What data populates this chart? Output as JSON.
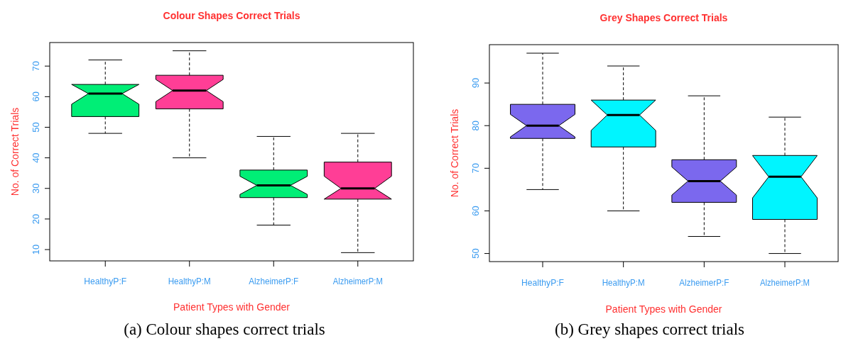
{
  "chart_data": [
    {
      "type": "box",
      "title": "Colour Shapes Correct Trials",
      "xlabel": "Patient Types with Gender",
      "ylabel": "No. of Correct Trials",
      "categories": [
        "HealthyP:F",
        "HealthyP:M",
        "AlzheimerP:F",
        "AlzheimerP:M"
      ],
      "colors": [
        "#00ee76",
        "#ff3e96",
        "#00ee76",
        "#ff3e96"
      ],
      "boxes": [
        {
          "low": 48,
          "q1": 53.5,
          "median": 61,
          "q3": 64,
          "high": 72
        },
        {
          "low": 40,
          "q1": 56,
          "median": 62,
          "q3": 67,
          "high": 75
        },
        {
          "low": 18,
          "q1": 27,
          "median": 31,
          "q3": 36,
          "high": 47
        },
        {
          "low": 9,
          "q1": 26.5,
          "median": 30,
          "q3": 38.6,
          "high": 48
        }
      ],
      "ylim": [
        6.3,
        77.7
      ],
      "yticks": [
        10,
        20,
        30,
        40,
        50,
        60,
        70
      ],
      "annotations": [
        "(a) Colour shapes correct trials"
      ]
    },
    {
      "type": "box",
      "title": "Grey Shapes Correct Trials",
      "xlabel": "Patient Types with Gender",
      "ylabel": "No. of Correct Trials",
      "categories": [
        "HealthyP:F",
        "HealthyP:M",
        "AlzheimerP:F",
        "AlzheimerP:M"
      ],
      "colors": [
        "#7b68ee",
        "#00f5ff",
        "#7b68ee",
        "#00f5ff"
      ],
      "boxes": [
        {
          "low": 65,
          "q1": 77,
          "median": 80,
          "q3": 85,
          "high": 97
        },
        {
          "low": 60,
          "q1": 75,
          "median": 82.5,
          "q3": 86,
          "high": 94
        },
        {
          "low": 54,
          "q1": 62,
          "median": 67,
          "q3": 72,
          "high": 87
        },
        {
          "low": 50,
          "q1": 58,
          "median": 68,
          "q3": 73,
          "high": 82
        }
      ],
      "ylim": [
        48.1,
        99
      ],
      "yticks": [
        50,
        60,
        70,
        80,
        90
      ],
      "annotations": [
        "(b) Grey shapes correct trials"
      ]
    }
  ]
}
